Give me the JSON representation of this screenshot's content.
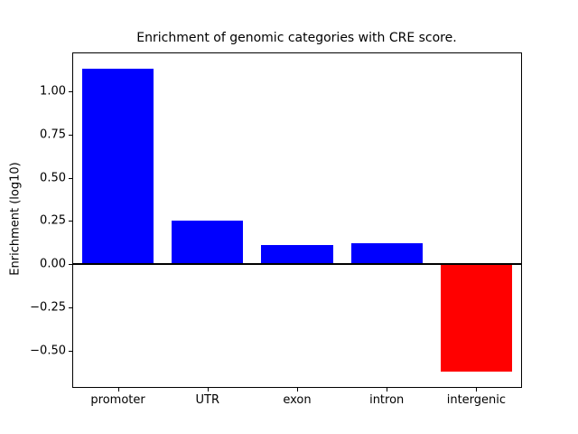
{
  "chart_data": {
    "type": "bar",
    "title": "Enrichment of genomic categories with CRE score.",
    "ylabel": "Enrichment (log10)",
    "xlabel": "",
    "categories": [
      "promoter",
      "UTR",
      "exon",
      "intron",
      "intergenic"
    ],
    "values": [
      1.13,
      0.25,
      0.11,
      0.12,
      -0.62
    ],
    "bar_colors": [
      "#0000ff",
      "#0000ff",
      "#0000ff",
      "#0000ff",
      "#ff0000"
    ],
    "positive_color": "#0000ff",
    "negative_color": "#ff0000",
    "ylim": [
      -0.71,
      1.22
    ],
    "yticks": [
      -0.5,
      -0.25,
      0,
      0.25,
      0.5,
      0.75,
      1.0
    ],
    "ytick_labels": [
      "−0.50",
      "−0.25",
      "0.00",
      "0.25",
      "0.50",
      "0.75",
      "1.00"
    ],
    "grid": false,
    "legend_position": "none",
    "zero_line": true,
    "bar_width_fraction": 0.8
  }
}
